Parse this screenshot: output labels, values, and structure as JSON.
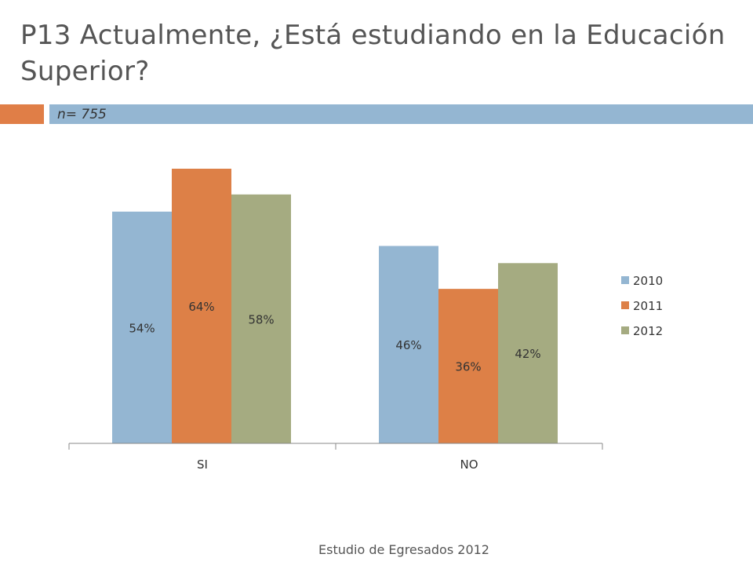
{
  "header": {
    "title": "P13 Actualmente, ¿Está estudiando en la Educación Superior?",
    "subtitle": "n= 755"
  },
  "colors": {
    "band_orange": "#E07E47",
    "band_blue": "#94B6D2",
    "title_text": "#555555"
  },
  "chart_data": {
    "type": "bar",
    "categories": [
      "SI",
      "NO"
    ],
    "series": [
      {
        "name": "2010",
        "values": [
          54,
          46
        ],
        "labels": [
          "54%",
          "46%"
        ],
        "color": "#94B6D2"
      },
      {
        "name": "2011",
        "values": [
          64,
          36
        ],
        "labels": [
          "64%",
          "36%"
        ],
        "color": "#DD8047"
      },
      {
        "name": "2012",
        "values": [
          58,
          42
        ],
        "labels": [
          "58%",
          "42%"
        ],
        "color": "#A5AB81"
      }
    ],
    "ylim": [
      0,
      64
    ],
    "grid": false,
    "legend": "right"
  },
  "footer": {
    "text": "Estudio de Egresados 2012"
  }
}
